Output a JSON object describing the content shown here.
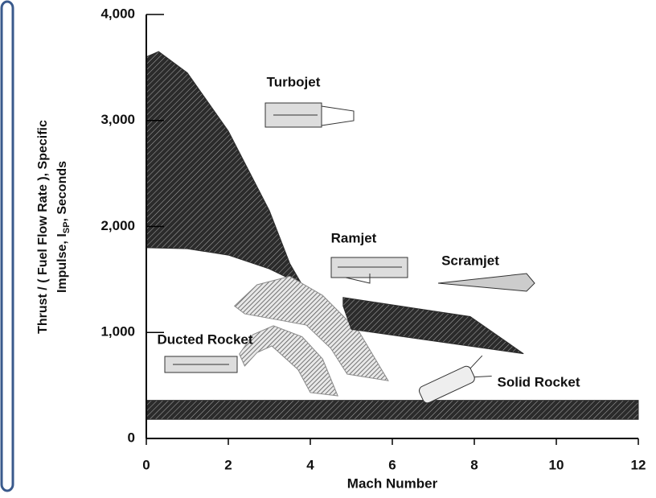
{
  "chart_data": {
    "type": "region",
    "xlabel": "Mach Number",
    "ylabel": {
      "line1": "Thrust / ( Fuel Flow Rate ), Specific",
      "line2": [
        "Impulse, I",
        "SP",
        ", Seconds"
      ]
    },
    "xlim": [
      0,
      12
    ],
    "xticks": [
      0,
      2,
      4,
      6,
      8,
      10,
      12
    ],
    "ylim": [
      0,
      4000
    ],
    "yticks": [
      0,
      {
        "value": 1000,
        "label": "1,000"
      },
      {
        "value": 2000,
        "label": "2,000"
      },
      {
        "value": 3000,
        "label": "3,000"
      },
      {
        "value": 4000,
        "label": "4,000"
      }
    ],
    "series": [
      {
        "name": "Turbojet",
        "color": "#2b2b2b",
        "x": [
          0,
          0.3,
          1,
          2,
          3,
          3.5,
          3.8,
          3,
          2,
          1,
          0
        ],
        "values": [
          3600,
          3650,
          3450,
          2900,
          2150,
          1650,
          1450,
          1600,
          1730,
          1790,
          1800
        ]
      },
      {
        "name": "Ramjet",
        "color": "#8a8a8a",
        "x": [
          2.15,
          2.7,
          3.5,
          4.3,
          5.2,
          5.9,
          4.9,
          4.5,
          3.9,
          3.2,
          2.4
        ],
        "values": [
          1250,
          1450,
          1530,
          1350,
          1000,
          545,
          607,
          850,
          1070,
          1120,
          1176
        ]
      },
      {
        "name": "Scramjet",
        "color": "#2b2b2b",
        "x": [
          4.8,
          7.9,
          9.2,
          5.0,
          4.8
        ],
        "values": [
          1330,
          1150,
          800,
          1030,
          1250
        ]
      },
      {
        "name": "Ducted Rocket",
        "color": "#8a8a8a",
        "x": [
          2.27,
          2.6,
          3.1,
          3.8,
          4.3,
          4.67,
          4,
          3.7,
          3.06,
          2.7,
          2.4
        ],
        "values": [
          797,
          980,
          1063,
          960,
          750,
          402,
          433,
          650,
          873,
          810,
          683
        ]
      },
      {
        "name": "Solid Rocket",
        "color": "#2b2b2b",
        "x": [
          0,
          12,
          12,
          0
        ],
        "values": [
          360,
          360,
          180,
          180
        ]
      }
    ]
  }
}
